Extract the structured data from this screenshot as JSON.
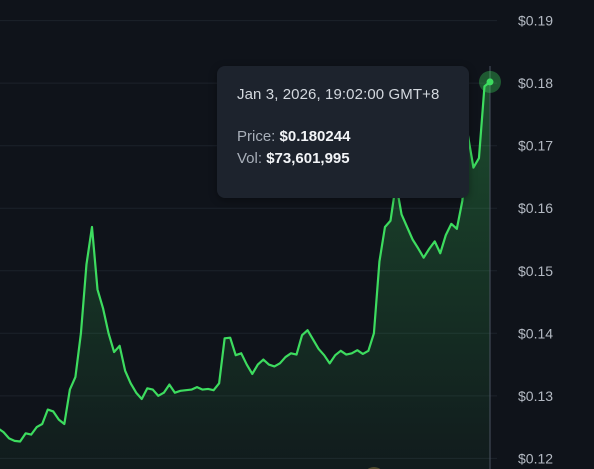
{
  "tooltip": {
    "date": "Jan 3, 2026, 19:02:00 GMT+8",
    "price_label": "Price:",
    "price_value": "$0.180244",
    "vol_label": "Vol:",
    "vol_value": "$73,601,995"
  },
  "colors": {
    "background": "#0f131a",
    "line": "#3ddc5f",
    "grid": "#1c222b",
    "crosshair": "#4a5260"
  },
  "chart_data": {
    "type": "area",
    "y_ticks": [
      "$0.19",
      "$0.18",
      "$0.17",
      "$0.16",
      "$0.15",
      "$0.14",
      "$0.13",
      "$0.12"
    ],
    "ylim": [
      0.1183,
      0.1933
    ],
    "grid": true,
    "series": [
      {
        "values": [
          0.1248,
          0.1242,
          0.1232,
          0.1228,
          0.1227,
          0.124,
          0.1238,
          0.125,
          0.1255,
          0.1278,
          0.1275,
          0.1262,
          0.1255,
          0.131,
          0.133,
          0.14,
          0.151,
          0.157,
          0.147,
          0.144,
          0.14,
          0.137,
          0.138,
          0.134,
          0.132,
          0.1305,
          0.1295,
          0.1312,
          0.131,
          0.13,
          0.1305,
          0.1318,
          0.1305,
          0.1308,
          0.1309,
          0.131,
          0.1314,
          0.131,
          0.1311,
          0.1309,
          0.132,
          0.1392,
          0.1393,
          0.1365,
          0.1368,
          0.135,
          0.1335,
          0.135,
          0.1358,
          0.135,
          0.1347,
          0.1352,
          0.1362,
          0.1368,
          0.1366,
          0.1397,
          0.1405,
          0.139,
          0.1375,
          0.1365,
          0.1352,
          0.1365,
          0.1372,
          0.1366,
          0.1368,
          0.1373,
          0.1367,
          0.1372,
          0.14,
          0.1515,
          0.157,
          0.158,
          0.164,
          0.159,
          0.157,
          0.155,
          0.1536,
          0.1521,
          0.1535,
          0.1547,
          0.1528,
          0.1557,
          0.1575,
          0.1567,
          0.1612,
          0.1717,
          0.1665,
          0.168,
          0.1795,
          0.1802
        ]
      }
    ],
    "highlight_index": 89
  }
}
